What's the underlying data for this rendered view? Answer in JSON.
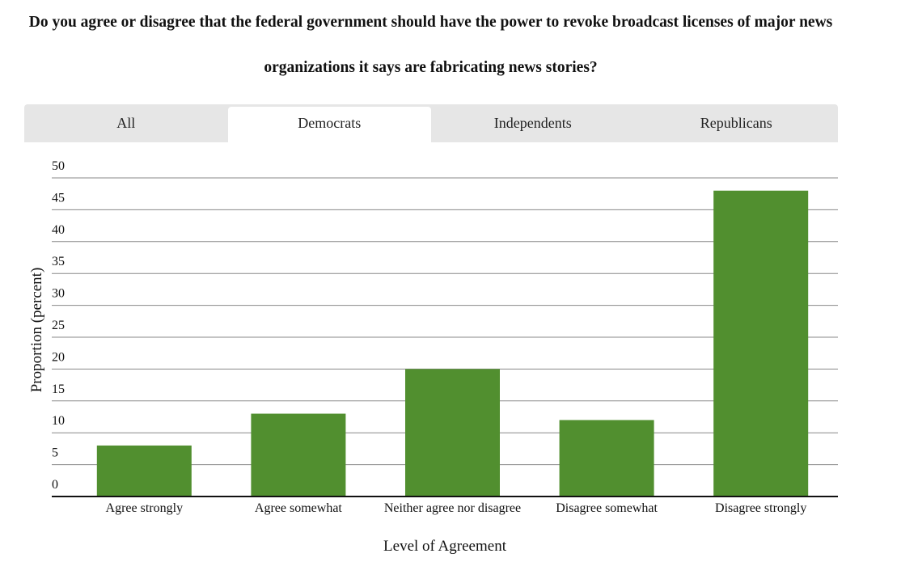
{
  "tabs": [
    "All",
    "Democrats",
    "Independents",
    "Republicans"
  ],
  "active_tab": 1,
  "chart_data": {
    "type": "bar",
    "title": "Do you agree or disagree that the federal government should have the power to revoke broadcast licenses of major news organizations it says are fabricating news stories?",
    "x_label": "Level of Agreement",
    "y_label": "Proportion (percent)",
    "categories": [
      "Agree strongly",
      "Agree somewhat",
      "Neither agree nor disagree",
      "Disagree somewhat",
      "Disagree strongly"
    ],
    "values": [
      8,
      13,
      20,
      12,
      48
    ],
    "color": "#518f2f",
    "ylim": [
      0,
      50
    ],
    "yticks": [
      0,
      5,
      10,
      15,
      20,
      25,
      30,
      35,
      40,
      45,
      50
    ],
    "grid": true
  }
}
